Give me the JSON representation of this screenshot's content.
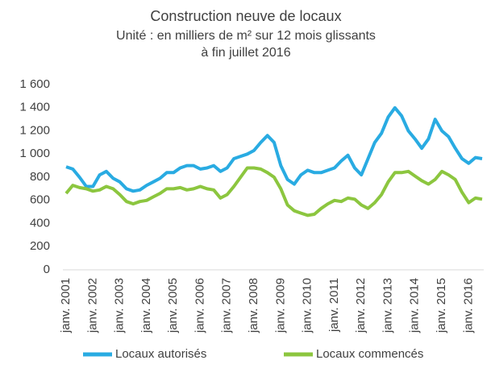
{
  "chart_data": {
    "type": "line",
    "title": "Construction neuve de locaux",
    "subtitle": [
      "Unité : en milliers de m² sur 12 mois glissants",
      "à fin juillet  2016"
    ],
    "categories": [
      "janv. 2001",
      null,
      null,
      null,
      "janv. 2002",
      null,
      null,
      null,
      "janv. 2003",
      null,
      null,
      null,
      "janv. 2004",
      null,
      null,
      null,
      "janv. 2005",
      null,
      null,
      null,
      "janv. 2006",
      null,
      null,
      null,
      "janv. 2007",
      null,
      null,
      null,
      "janv. 2008",
      null,
      null,
      null,
      "janv. 2009",
      null,
      null,
      null,
      "janv. 2010",
      null,
      null,
      null,
      "janv. 2011",
      null,
      null,
      null,
      "janv. 2012",
      null,
      null,
      null,
      "janv. 2013",
      null,
      null,
      null,
      "janv. 2014",
      null,
      null,
      null,
      "janv. 2015",
      null,
      null,
      null,
      "janv. 2016",
      null,
      null
    ],
    "series": [
      {
        "name": "Locaux autorisés",
        "color": "#29abe2",
        "values": [
          890,
          870,
          800,
          720,
          720,
          820,
          850,
          790,
          760,
          700,
          680,
          690,
          730,
          760,
          790,
          840,
          840,
          880,
          900,
          900,
          870,
          880,
          900,
          850,
          880,
          960,
          980,
          1000,
          1030,
          1100,
          1160,
          1100,
          900,
          780,
          740,
          820,
          860,
          840,
          840,
          860,
          880,
          940,
          990,
          880,
          820,
          960,
          1100,
          1180,
          1320,
          1400,
          1330,
          1200,
          1130,
          1050,
          1130,
          1300,
          1200,
          1150,
          1050,
          960,
          920,
          970,
          960
        ]
      },
      {
        "name": "Locaux commencés",
        "color": "#8cc63f",
        "values": [
          660,
          730,
          710,
          700,
          680,
          690,
          720,
          700,
          650,
          590,
          570,
          590,
          600,
          630,
          660,
          700,
          700,
          710,
          690,
          700,
          720,
          700,
          690,
          620,
          650,
          720,
          800,
          880,
          880,
          870,
          840,
          800,
          700,
          560,
          510,
          490,
          470,
          480,
          530,
          570,
          600,
          590,
          620,
          610,
          560,
          530,
          580,
          650,
          760,
          840,
          840,
          850,
          810,
          770,
          740,
          780,
          850,
          820,
          780,
          670,
          580,
          620,
          610
        ]
      }
    ],
    "ylim": [
      0,
      1600
    ],
    "yticks": [
      0,
      200,
      400,
      600,
      800,
      {
        "value": 1000,
        "label": "1 000"
      },
      {
        "value": 1200,
        "label": "1 200"
      },
      {
        "value": 1400,
        "label": "1 400"
      },
      {
        "value": 1600,
        "label": "1 600"
      }
    ],
    "grid": false
  }
}
